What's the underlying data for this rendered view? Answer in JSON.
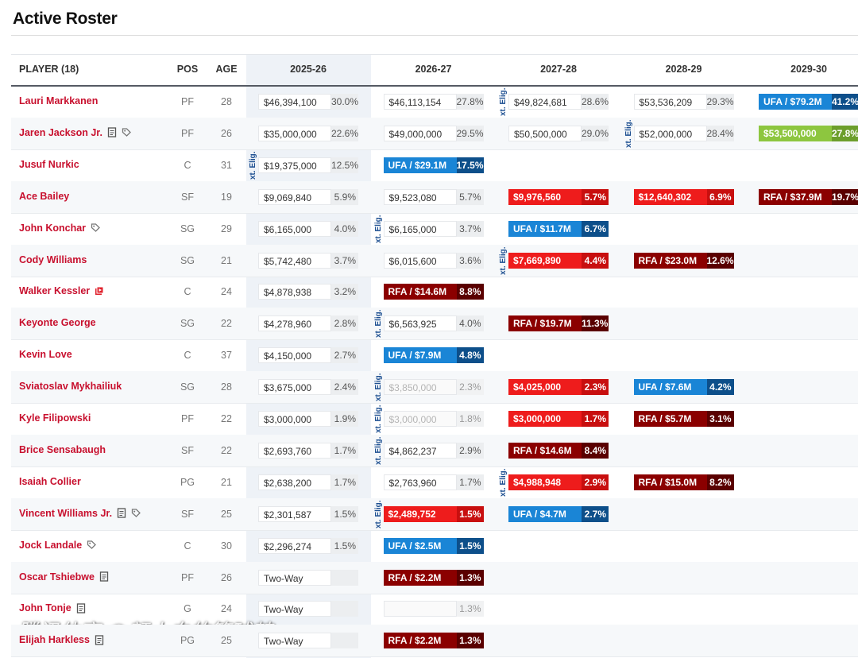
{
  "title": "Active Roster",
  "columns": {
    "player": "PLAYER (18)",
    "pos": "POS",
    "age": "AGE",
    "seasons": [
      "2025-26",
      "2026-27",
      "2027-28",
      "2028-29",
      "2029-30"
    ]
  },
  "ext_label": "xt. Elig.",
  "watermark": "腾讯体育 @颜小白的篮球梦",
  "rows": [
    {
      "name": "Lauri Markkanen",
      "pos": "PF",
      "age": 28,
      "icons": [],
      "ext_before": 2,
      "cells": [
        {
          "amount": "$46,394,100",
          "pct": "30.0%",
          "kind": "plain"
        },
        {
          "amount": "$46,113,154",
          "pct": "27.8%",
          "kind": "plain"
        },
        {
          "amount": "$49,824,681",
          "pct": "28.6%",
          "kind": "plain"
        },
        {
          "amount": "$53,536,209",
          "pct": "29.3%",
          "kind": "plain"
        },
        {
          "amount": "UFA / $79.2M",
          "pct": "41.2%",
          "kind": "ufa"
        }
      ]
    },
    {
      "name": "Jaren Jackson Jr.",
      "pos": "PF",
      "age": 26,
      "icons": [
        "doc",
        "tag"
      ],
      "ext_before": 3,
      "cells": [
        {
          "amount": "$35,000,000",
          "pct": "22.6%",
          "kind": "plain"
        },
        {
          "amount": "$49,000,000",
          "pct": "29.5%",
          "kind": "plain"
        },
        {
          "amount": "$50,500,000",
          "pct": "29.0%",
          "kind": "plain"
        },
        {
          "amount": "$52,000,000",
          "pct": "28.4%",
          "kind": "plain"
        },
        {
          "amount": "$53,500,000",
          "pct": "27.8%",
          "kind": "green"
        }
      ]
    },
    {
      "name": "Jusuf Nurkic",
      "pos": "C",
      "age": 31,
      "icons": [],
      "ext_before": 0,
      "cells": [
        {
          "amount": "$19,375,000",
          "pct": "12.5%",
          "kind": "plain"
        },
        {
          "amount": "UFA / $29.1M",
          "pct": "17.5%",
          "kind": "ufa"
        }
      ]
    },
    {
      "name": "Ace Bailey",
      "pos": "SF",
      "age": 19,
      "icons": [],
      "cells": [
        {
          "amount": "$9,069,840",
          "pct": "5.9%",
          "kind": "plain"
        },
        {
          "amount": "$9,523,080",
          "pct": "5.7%",
          "kind": "plain"
        },
        {
          "amount": "$9,976,560",
          "pct": "5.7%",
          "kind": "option"
        },
        {
          "amount": "$12,640,302",
          "pct": "6.9%",
          "kind": "option"
        },
        {
          "amount": "RFA / $37.9M",
          "pct": "19.7%",
          "kind": "rfa"
        }
      ]
    },
    {
      "name": "John Konchar",
      "pos": "SG",
      "age": 29,
      "icons": [
        "tag"
      ],
      "ext_before": 1,
      "cells": [
        {
          "amount": "$6,165,000",
          "pct": "4.0%",
          "kind": "plain"
        },
        {
          "amount": "$6,165,000",
          "pct": "3.7%",
          "kind": "plain"
        },
        {
          "amount": "UFA / $11.7M",
          "pct": "6.7%",
          "kind": "ufa"
        }
      ]
    },
    {
      "name": "Cody Williams",
      "pos": "SG",
      "age": 21,
      "icons": [],
      "ext_before": 2,
      "cells": [
        {
          "amount": "$5,742,480",
          "pct": "3.7%",
          "kind": "plain"
        },
        {
          "amount": "$6,015,600",
          "pct": "3.6%",
          "kind": "plain"
        },
        {
          "amount": "$7,669,890",
          "pct": "4.4%",
          "kind": "option"
        },
        {
          "amount": "RFA / $23.0M",
          "pct": "12.6%",
          "kind": "rfa"
        }
      ]
    },
    {
      "name": "Walker Kessler",
      "pos": "C",
      "age": 24,
      "icons": [
        "video"
      ],
      "cells": [
        {
          "amount": "$4,878,938",
          "pct": "3.2%",
          "kind": "plain"
        },
        {
          "amount": "RFA / $14.6M",
          "pct": "8.8%",
          "kind": "rfa"
        }
      ]
    },
    {
      "name": "Keyonte George",
      "pos": "SG",
      "age": 22,
      "icons": [],
      "ext_before": 1,
      "cells": [
        {
          "amount": "$4,278,960",
          "pct": "2.8%",
          "kind": "plain"
        },
        {
          "amount": "$6,563,925",
          "pct": "4.0%",
          "kind": "plain"
        },
        {
          "amount": "RFA / $19.7M",
          "pct": "11.3%",
          "kind": "rfa"
        }
      ]
    },
    {
      "name": "Kevin Love",
      "pos": "C",
      "age": 37,
      "icons": [],
      "cells": [
        {
          "amount": "$4,150,000",
          "pct": "2.7%",
          "kind": "plain"
        },
        {
          "amount": "UFA / $7.9M",
          "pct": "4.8%",
          "kind": "ufa"
        }
      ]
    },
    {
      "name": "Sviatoslav Mykhailiuk",
      "pos": "SG",
      "age": 28,
      "icons": [],
      "ext_before": 1,
      "cells": [
        {
          "amount": "$3,675,000",
          "pct": "2.4%",
          "kind": "plain"
        },
        {
          "amount": "$3,850,000",
          "pct": "2.3%",
          "kind": "faded"
        },
        {
          "amount": "$4,025,000",
          "pct": "2.3%",
          "kind": "option"
        },
        {
          "amount": "UFA / $7.6M",
          "pct": "4.2%",
          "kind": "ufa"
        }
      ]
    },
    {
      "name": "Kyle Filipowski",
      "pos": "PF",
      "age": 22,
      "icons": [],
      "ext_before": 1,
      "cells": [
        {
          "amount": "$3,000,000",
          "pct": "1.9%",
          "kind": "plain"
        },
        {
          "amount": "$3,000,000",
          "pct": "1.8%",
          "kind": "faded"
        },
        {
          "amount": "$3,000,000",
          "pct": "1.7%",
          "kind": "option"
        },
        {
          "amount": "RFA / $5.7M",
          "pct": "3.1%",
          "kind": "rfa"
        }
      ]
    },
    {
      "name": "Brice Sensabaugh",
      "pos": "SF",
      "age": 22,
      "icons": [],
      "ext_before": 1,
      "cells": [
        {
          "amount": "$2,693,760",
          "pct": "1.7%",
          "kind": "plain"
        },
        {
          "amount": "$4,862,237",
          "pct": "2.9%",
          "kind": "plain"
        },
        {
          "amount": "RFA / $14.6M",
          "pct": "8.4%",
          "kind": "rfa"
        }
      ]
    },
    {
      "name": "Isaiah Collier",
      "pos": "PG",
      "age": 21,
      "icons": [],
      "ext_before": 2,
      "cells": [
        {
          "amount": "$2,638,200",
          "pct": "1.7%",
          "kind": "plain"
        },
        {
          "amount": "$2,763,960",
          "pct": "1.7%",
          "kind": "plain"
        },
        {
          "amount": "$4,988,948",
          "pct": "2.9%",
          "kind": "option"
        },
        {
          "amount": "RFA / $15.0M",
          "pct": "8.2%",
          "kind": "rfa"
        }
      ]
    },
    {
      "name": "Vincent Williams Jr.",
      "pos": "SF",
      "age": 25,
      "icons": [
        "doc",
        "tag"
      ],
      "ext_before": 1,
      "cells": [
        {
          "amount": "$2,301,587",
          "pct": "1.5%",
          "kind": "plain"
        },
        {
          "amount": "$2,489,752",
          "pct": "1.5%",
          "kind": "option"
        },
        {
          "amount": "UFA / $4.7M",
          "pct": "2.7%",
          "kind": "ufa"
        }
      ]
    },
    {
      "name": "Jock Landale",
      "pos": "C",
      "age": 30,
      "icons": [
        "tag"
      ],
      "cells": [
        {
          "amount": "$2,296,274",
          "pct": "1.5%",
          "kind": "plain"
        },
        {
          "amount": "UFA / $2.5M",
          "pct": "1.5%",
          "kind": "ufa"
        }
      ]
    },
    {
      "name": "Oscar Tshiebwe",
      "pos": "PF",
      "age": 26,
      "icons": [
        "doc"
      ],
      "cells": [
        {
          "amount": "Two-Way",
          "kind": "plain"
        },
        {
          "amount": "RFA / $2.2M",
          "pct": "1.3%",
          "kind": "rfa"
        }
      ]
    },
    {
      "name": "John Tonje",
      "pos": "G",
      "age": 24,
      "icons": [
        "doc"
      ],
      "cells": [
        {
          "amount": "Two-Way",
          "kind": "plain"
        },
        {
          "pct": "1.3%",
          "kind": "faded"
        }
      ]
    },
    {
      "name": "Elijah Harkless",
      "pos": "PG",
      "age": 25,
      "icons": [
        "doc"
      ],
      "cells": [
        {
          "amount": "Two-Way",
          "kind": "plain"
        },
        {
          "amount": "RFA / $2.2M",
          "pct": "1.3%",
          "kind": "rfa"
        }
      ]
    }
  ]
}
